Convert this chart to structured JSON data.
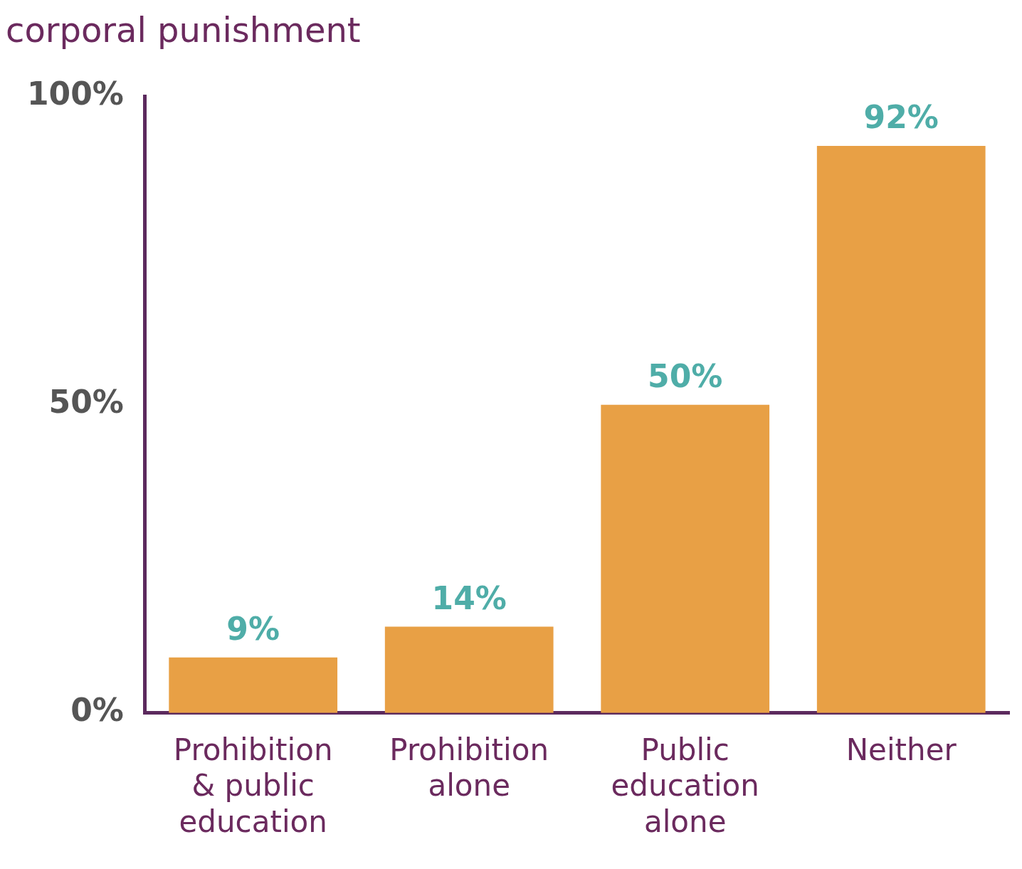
{
  "chart_data": {
    "type": "bar",
    "title": "corporal punishment",
    "categories": [
      "Prohibition & public education",
      "Prohibition alone",
      "Public education alone",
      "Neither"
    ],
    "values": [
      9,
      14,
      50,
      92
    ],
    "color": "#e8a045",
    "value_labels": [
      "9%",
      "14%",
      "50%",
      "92%"
    ],
    "ylim": [
      0,
      100
    ],
    "yticks": [
      {
        "value": 0,
        "label": "0%"
      },
      {
        "value": 50,
        "label": "50%"
      },
      {
        "value": 100,
        "label": "100%"
      }
    ],
    "grid": false,
    "legend": false
  }
}
